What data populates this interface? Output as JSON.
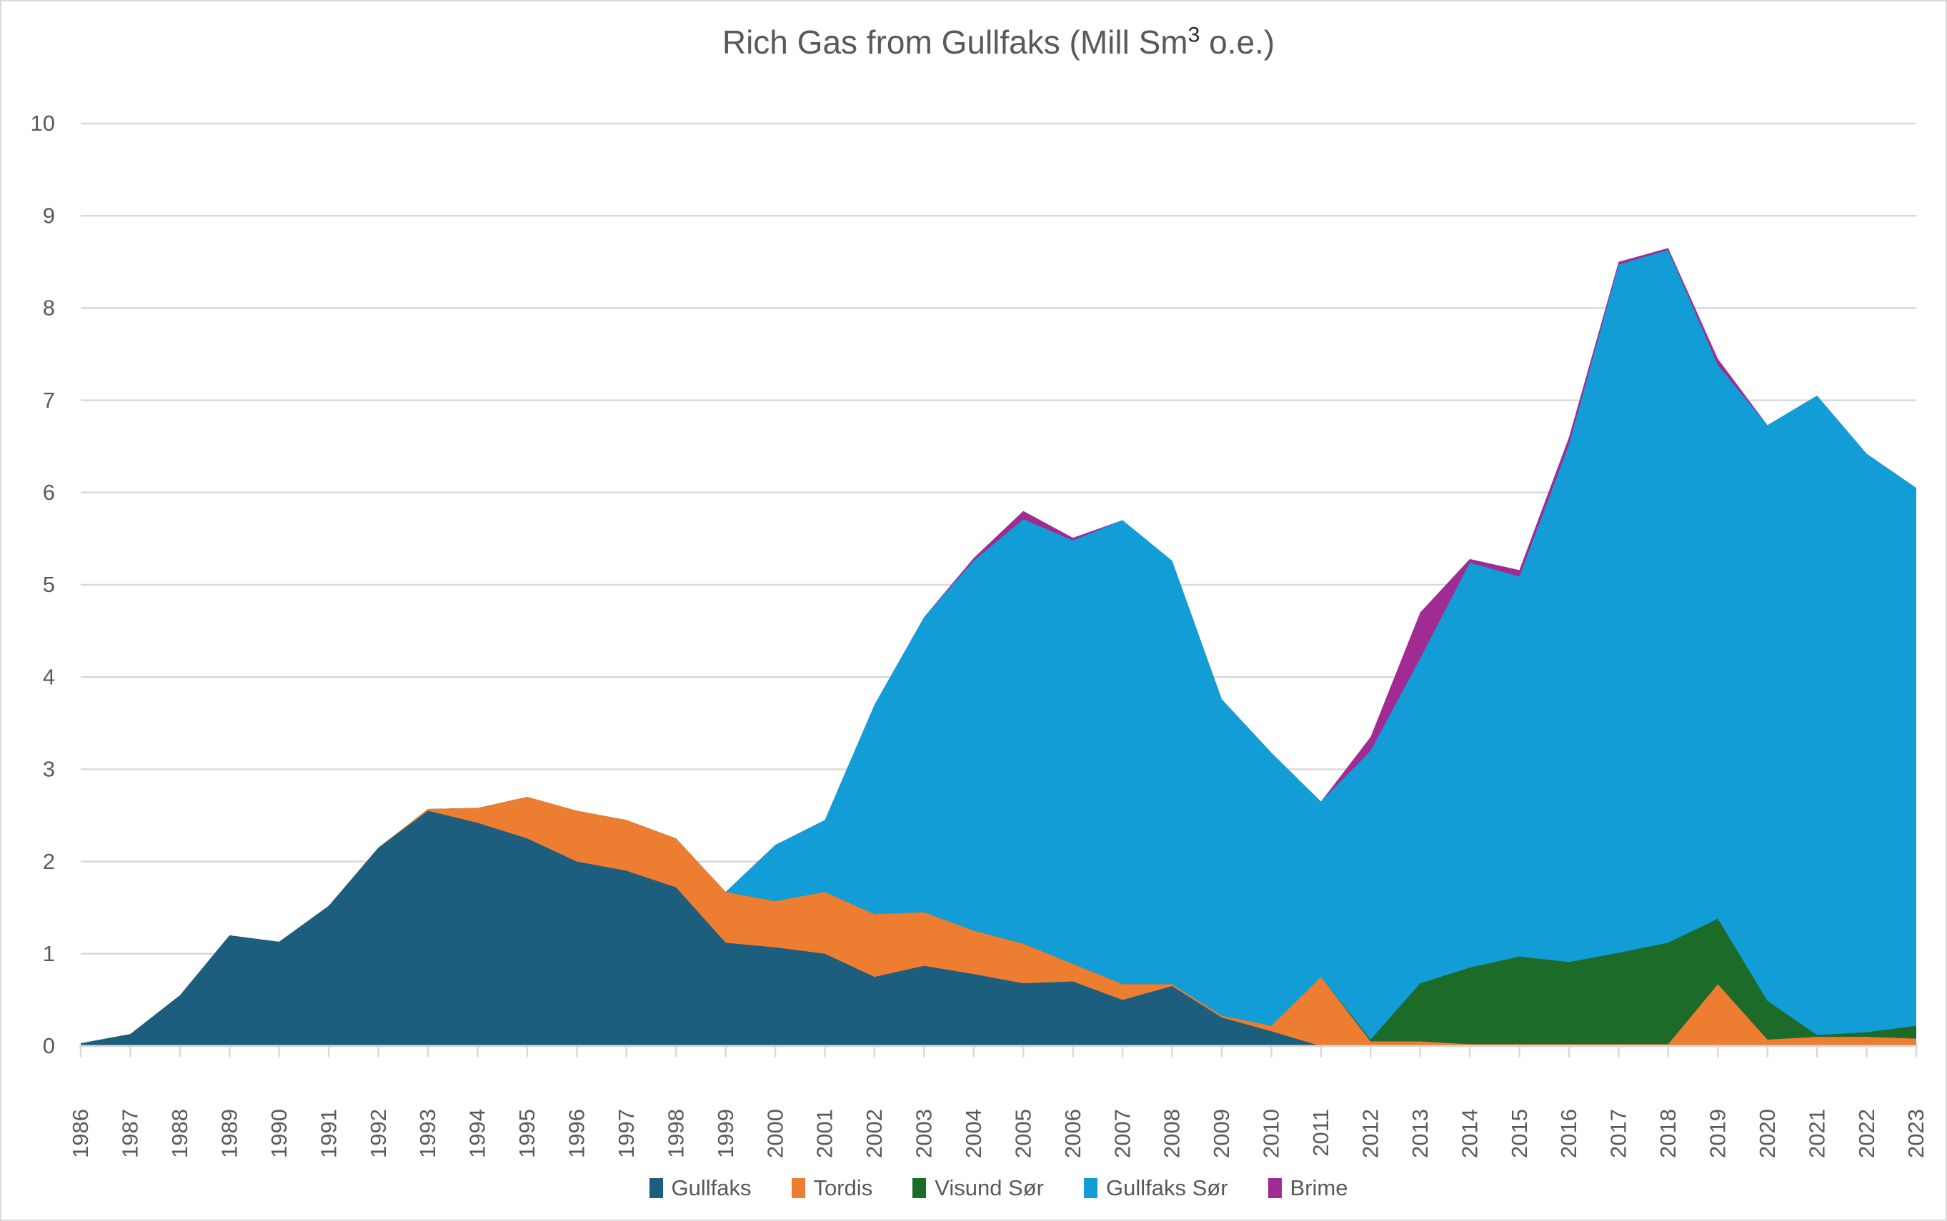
{
  "title": {
    "prefix": "Rich Gas from Gullfaks (Mill Sm",
    "sup": "3",
    "suffix": " o.e.)"
  },
  "colors": {
    "gullfaks": "#1D5D7D",
    "tordis": "#ED7D31",
    "visund_sor": "#1C6B28",
    "gullfaks_sor": "#129DD6",
    "brime": "#A02B93",
    "text": "#595959",
    "gridline": "#d9d9d9",
    "axis": "#d9d9d9"
  },
  "legend": {
    "items": [
      {
        "label": "Gullfaks",
        "color_key": "gullfaks"
      },
      {
        "label": "Tordis",
        "color_key": "tordis"
      },
      {
        "label": "Visund Sør",
        "color_key": "visund_sor"
      },
      {
        "label": "Gullfaks Sør",
        "color_key": "gullfaks_sor"
      },
      {
        "label": "Brime",
        "color_key": "brime"
      }
    ]
  },
  "chart_data": {
    "type": "area",
    "stacked": true,
    "title": "Rich Gas from Gullfaks (Mill Sm3 o.e.)",
    "xlabel": "",
    "ylabel": "",
    "ylim": [
      0,
      10
    ],
    "yticks": [
      0,
      1,
      2,
      3,
      4,
      5,
      6,
      7,
      8,
      9,
      10
    ],
    "grid": "horizontal",
    "legend_position": "bottom",
    "categories": [
      1986,
      1987,
      1988,
      1989,
      1990,
      1991,
      1992,
      1993,
      1994,
      1995,
      1996,
      1997,
      1998,
      1999,
      2000,
      2001,
      2002,
      2003,
      2004,
      2005,
      2006,
      2007,
      2008,
      2009,
      2010,
      2011,
      2012,
      2013,
      2014,
      2015,
      2016,
      2017,
      2018,
      2019,
      2020,
      2021,
      2022,
      2023
    ],
    "series": [
      {
        "name": "Gullfaks",
        "color_key": "gullfaks",
        "values": [
          0.03,
          0.13,
          0.55,
          1.2,
          1.13,
          1.52,
          2.15,
          2.55,
          2.42,
          2.25,
          2.0,
          1.9,
          1.72,
          1.12,
          1.07,
          1.0,
          0.75,
          0.87,
          0.78,
          0.68,
          0.7,
          0.5,
          0.65,
          0.31,
          0.16,
          0,
          0,
          0,
          0,
          0,
          0,
          0,
          0,
          0,
          0,
          0,
          0,
          0
        ]
      },
      {
        "name": "Tordis",
        "color_key": "tordis",
        "values": [
          0,
          0,
          0,
          0,
          0,
          0,
          0,
          0.02,
          0.16,
          0.45,
          0.55,
          0.55,
          0.53,
          0.55,
          0.5,
          0.67,
          0.68,
          0.58,
          0.47,
          0.43,
          0.19,
          0.17,
          0.02,
          0.02,
          0.06,
          0.75,
          0.05,
          0.05,
          0.02,
          0.02,
          0.02,
          0.02,
          0.02,
          0.67,
          0.07,
          0.1,
          0.1,
          0.08
        ]
      },
      {
        "name": "Visund Sør",
        "color_key": "visund_sor",
        "values": [
          0,
          0,
          0,
          0,
          0,
          0,
          0,
          0,
          0,
          0,
          0,
          0,
          0,
          0,
          0,
          0,
          0,
          0,
          0,
          0,
          0,
          0,
          0,
          0,
          0,
          0,
          0.02,
          0.63,
          0.83,
          0.95,
          0.89,
          0.99,
          1.1,
          0.71,
          0.42,
          0.02,
          0.05,
          0.14
        ]
      },
      {
        "name": "Gullfaks Sør",
        "color_key": "gullfaks_sor",
        "values": [
          0,
          0,
          0,
          0,
          0,
          0,
          0,
          0,
          0,
          0,
          0,
          0,
          0,
          0,
          0.61,
          0.78,
          2.27,
          3.2,
          4.01,
          4.6,
          4.59,
          5.03,
          4.59,
          3.43,
          2.96,
          1.9,
          3.13,
          3.52,
          4.39,
          4.12,
          5.61,
          7.46,
          7.51,
          6.0,
          6.24,
          6.93,
          6.27,
          5.83
        ]
      },
      {
        "name": "Brime",
        "color_key": "brime",
        "values": [
          0,
          0,
          0,
          0,
          0,
          0,
          0,
          0,
          0,
          0,
          0,
          0,
          0,
          0,
          0,
          0,
          0,
          0,
          0.03,
          0.09,
          0.03,
          0,
          0,
          0,
          0,
          0,
          0.15,
          0.5,
          0.04,
          0.07,
          0.08,
          0.03,
          0.02,
          0.07,
          0,
          0,
          0,
          0
        ]
      }
    ]
  }
}
